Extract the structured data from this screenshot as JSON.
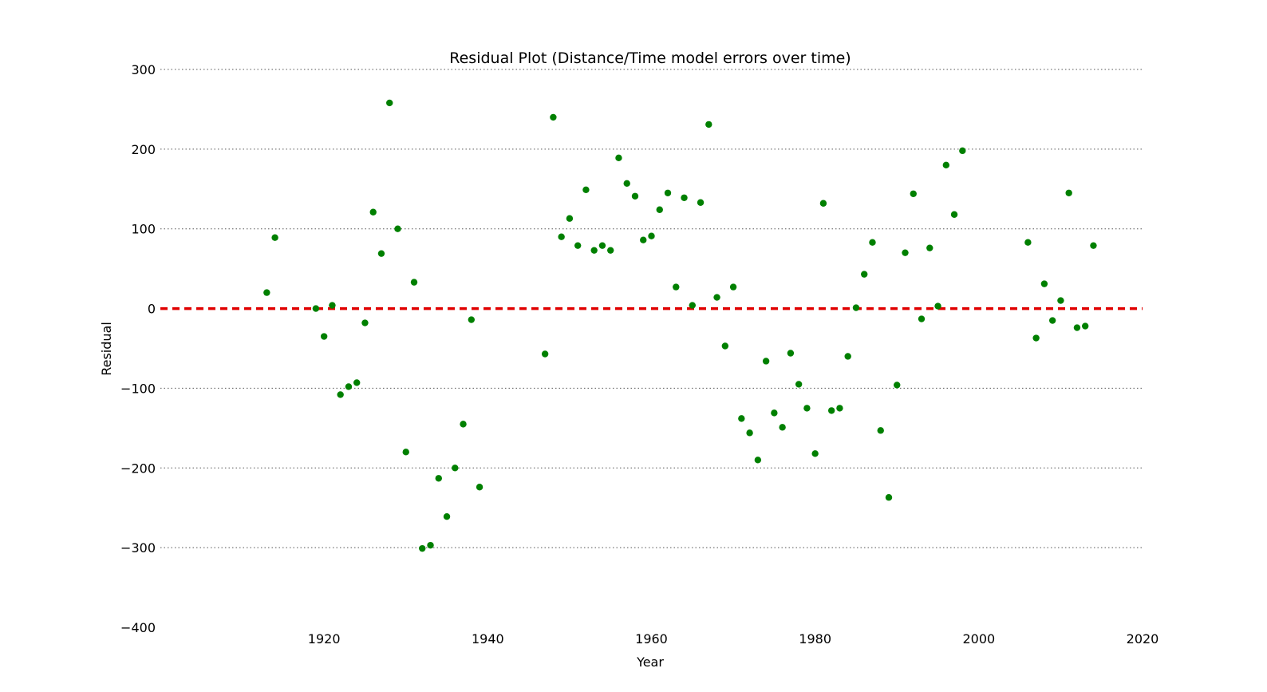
{
  "chart_data": {
    "type": "scatter",
    "title": "Residual Plot (Distance/Time model errors over time)",
    "xlabel": "Year",
    "ylabel": "Residual",
    "xlim": [
      1900,
      2020
    ],
    "ylim": [
      -400,
      300
    ],
    "xticks": [
      1920,
      1940,
      1960,
      1980,
      2000,
      2020
    ],
    "yticks": [
      300,
      200,
      100,
      0,
      -100,
      -200,
      -300,
      -400
    ],
    "xtick_labels": [
      "1920",
      "1940",
      "1960",
      "1980",
      "2000",
      "2020"
    ],
    "ytick_labels": [
      "300",
      "200",
      "100",
      "0",
      "−100",
      "−200",
      "−300",
      "−400"
    ],
    "grid": "horizontal dotted",
    "reference_line": {
      "y": 0,
      "color": "#e00000",
      "style": "dashed"
    },
    "point_color": "#008000",
    "series": [
      {
        "x": [
          1913,
          1914,
          1919,
          1920,
          1921,
          1922,
          1923,
          1924,
          1925,
          1926,
          1927,
          1928,
          1929,
          1930,
          1931,
          1932,
          1933,
          1934,
          1935,
          1936,
          1937,
          1938,
          1939,
          1947,
          1948,
          1949,
          1950,
          1951,
          1952,
          1953,
          1954,
          1955,
          1956,
          1957,
          1958,
          1959,
          1960,
          1961,
          1962,
          1963,
          1964,
          1965,
          1966,
          1967,
          1968,
          1969,
          1970,
          1971,
          1972,
          1973,
          1974,
          1975,
          1976,
          1977,
          1978,
          1979,
          1980,
          1981,
          1982,
          1983,
          1984,
          1985,
          1986,
          1987,
          1988,
          1989,
          1990,
          1991,
          1992,
          1993,
          1994,
          1995,
          1996,
          1997,
          1998,
          2006,
          2007,
          2008,
          2009,
          2010,
          2011,
          2012,
          2013,
          2014
        ],
        "y": [
          20,
          89,
          0,
          -35,
          4,
          -108,
          -98,
          -93,
          -18,
          121,
          69,
          258,
          100,
          -180,
          33,
          -301,
          -297,
          -213,
          -261,
          -200,
          -145,
          -14,
          -224,
          -57,
          240,
          90,
          113,
          79,
          149,
          73,
          79,
          73,
          189,
          157,
          141,
          86,
          91,
          124,
          145,
          27,
          139,
          4,
          133,
          231,
          14,
          -47,
          27,
          -138,
          -156,
          -190,
          -66,
          -131,
          -149,
          -56,
          -95,
          -125,
          -182,
          132,
          -128,
          -125,
          -60,
          1,
          43,
          83,
          -153,
          -237,
          -96,
          70,
          144,
          -13,
          76,
          3,
          180,
          118,
          198,
          83,
          -37,
          31,
          -15,
          10,
          145,
          -24,
          -22,
          79
        ]
      }
    ]
  }
}
